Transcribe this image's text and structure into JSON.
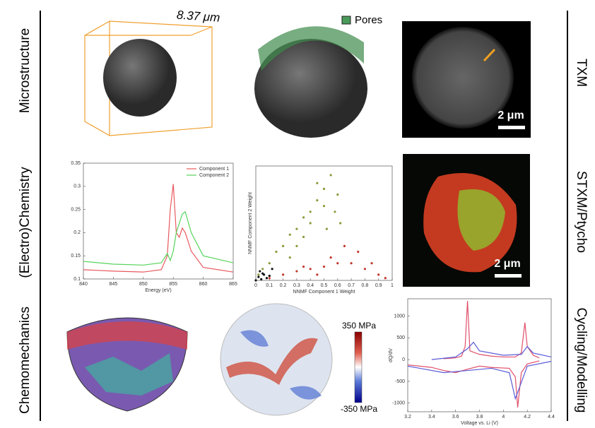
{
  "left_labels": [
    "Microstructure",
    "(Electro)Chemistry",
    "Chemomechanics"
  ],
  "right_labels": [
    "TXM",
    "STXM/Ptycho",
    "Cycling/Modelling"
  ],
  "panels": {
    "particle_size": "8.37 μm",
    "pores_legend": "Pores",
    "txm_scale": "2 μm",
    "stxm_scale": "2 μm",
    "stress_max": "350 MPa",
    "stress_min": "-350 MPa"
  },
  "charts": [
    {
      "type": "line",
      "xlabel": "Energy (eV)",
      "xlim": [
        840,
        865
      ],
      "xticks": [
        840,
        845,
        850,
        855,
        860,
        865
      ],
      "ylim": [
        0.1,
        0.35
      ],
      "yticks": [
        0.1,
        0.15,
        0.2,
        0.25,
        0.3,
        0.35
      ],
      "legend": "upper-right",
      "x": [
        840,
        845,
        850,
        853,
        854,
        854.5,
        855,
        855.5,
        856,
        856.5,
        857,
        858,
        860,
        865
      ],
      "series": [
        {
          "name": "Component 1",
          "color": "#e8595e",
          "values": [
            0.12,
            0.117,
            0.115,
            0.12,
            0.15,
            0.25,
            0.305,
            0.2,
            0.19,
            0.21,
            0.2,
            0.16,
            0.125,
            0.115
          ]
        },
        {
          "name": "Component 2",
          "color": "#57d35a",
          "values": [
            0.138,
            0.132,
            0.13,
            0.135,
            0.155,
            0.14,
            0.16,
            0.2,
            0.22,
            0.24,
            0.245,
            0.2,
            0.15,
            0.135
          ]
        }
      ]
    },
    {
      "type": "scatter",
      "xlabel": "NNMF Component 1 Weight",
      "ylabel": "NNMF Component 2 Weight",
      "xlim": [
        0,
        1
      ],
      "xticks": [
        0,
        0.1,
        0.2,
        0.3,
        0.4,
        0.5,
        0.6,
        0.7,
        0.8,
        0.9,
        1
      ],
      "ylim": [
        0,
        1
      ],
      "series": [
        {
          "color": "#8a9a3a",
          "x": [
            0.02,
            0.05,
            0.1,
            0.15,
            0.2,
            0.25,
            0.3,
            0.35,
            0.4,
            0.45,
            0.5,
            0.55,
            0.6,
            0.3,
            0.4,
            0.5,
            0.45,
            0.58,
            0.35,
            0.25,
            0.62,
            0.52
          ],
          "values": [
            0.05,
            0.1,
            0.15,
            0.25,
            0.3,
            0.4,
            0.45,
            0.55,
            0.6,
            0.7,
            0.8,
            0.92,
            0.75,
            0.3,
            0.5,
            0.65,
            0.85,
            0.6,
            0.38,
            0.2,
            0.5,
            0.45
          ]
        },
        {
          "color": "#c0392b",
          "x": [
            0.1,
            0.2,
            0.3,
            0.4,
            0.5,
            0.6,
            0.7,
            0.8,
            0.9,
            0.95,
            0.65,
            0.75,
            0.55,
            0.45,
            0.85,
            0.35
          ],
          "values": [
            0.02,
            0.05,
            0.08,
            0.1,
            0.12,
            0.15,
            0.15,
            0.1,
            0.05,
            0.02,
            0.3,
            0.25,
            0.2,
            0.05,
            0.15,
            0.12
          ]
        },
        {
          "color": "#111111",
          "x": [
            0,
            0.02,
            0.04,
            0.06,
            0.08,
            0.03,
            0.05,
            0.1,
            0.12
          ],
          "values": [
            0,
            0.03,
            0.01,
            0.05,
            0.02,
            0.08,
            0.06,
            0.04,
            0.1
          ]
        }
      ]
    },
    {
      "type": "line",
      "xlabel": "Voltage vs. Li (V)",
      "ylabel": "dQ/dV",
      "xlim": [
        3.2,
        4.4
      ],
      "xticks": [
        3.2,
        3.4,
        3.6,
        3.8,
        4,
        4.2,
        4.4
      ],
      "ylim": [
        -1200,
        1400
      ],
      "yticks": [
        -1000,
        -500,
        0,
        500,
        1000
      ],
      "series": [
        {
          "color": "#e0506a",
          "x": [
            3.5,
            3.6,
            3.65,
            3.68,
            3.7,
            3.72,
            3.8,
            3.9,
            4.0,
            4.1,
            4.15,
            4.18,
            4.2,
            4.25,
            4.3
          ],
          "values": [
            20,
            40,
            80,
            300,
            1350,
            200,
            120,
            80,
            60,
            60,
            150,
            850,
            300,
            100,
            40
          ]
        },
        {
          "color": "#e0506a",
          "x": [
            4.3,
            4.2,
            4.15,
            4.12,
            4.1,
            4.05,
            3.9,
            3.8,
            3.7,
            3.6,
            3.5,
            3.4,
            3.3,
            3.2
          ],
          "values": [
            -30,
            -100,
            -300,
            -1100,
            -400,
            -200,
            -180,
            -150,
            -220,
            -300,
            -250,
            -180,
            -150,
            -120
          ]
        },
        {
          "color": "#5a5ad8",
          "x": [
            3.4,
            3.6,
            3.7,
            3.75,
            3.8,
            4.0,
            4.15,
            4.2,
            4.25,
            4.4
          ],
          "values": [
            0,
            60,
            250,
            400,
            200,
            100,
            120,
            300,
            150,
            60
          ]
        },
        {
          "color": "#5a5ad8",
          "x": [
            4.4,
            4.2,
            4.1,
            4.05,
            3.9,
            3.7,
            3.5,
            3.3,
            3.2
          ],
          "values": [
            -40,
            -150,
            -900,
            -300,
            -200,
            -250,
            -300,
            -200,
            -150
          ]
        }
      ]
    }
  ]
}
